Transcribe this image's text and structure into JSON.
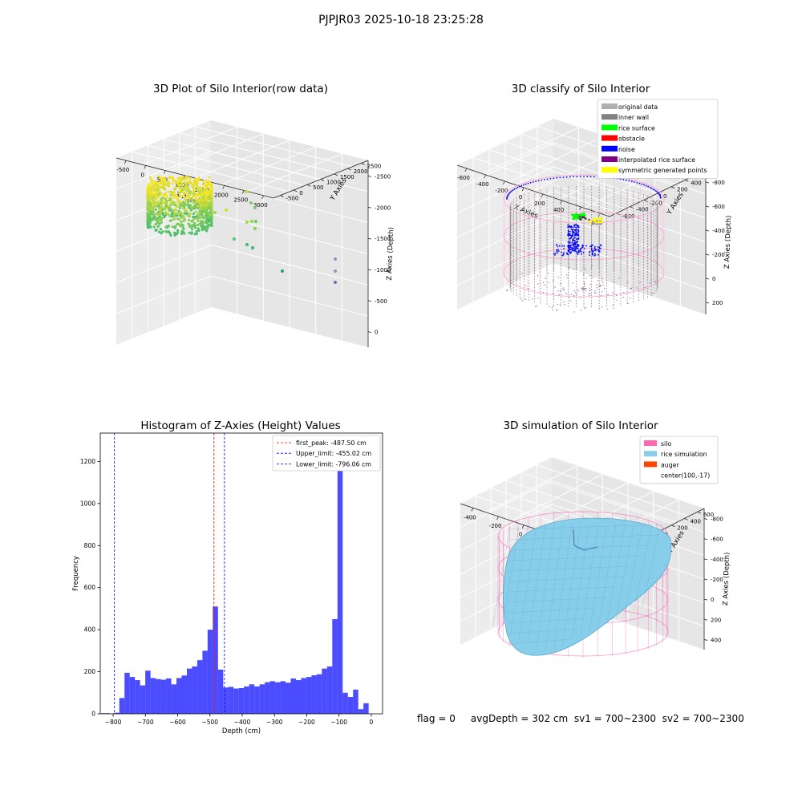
{
  "suptitle": "PJPJR03 2025-10-18 23:25:28",
  "status_text": "flag = 0     avgDepth = 302 cm  sv1 = 700~2300  sv2 = 700~2300",
  "chart_data": [
    {
      "type": "scatter",
      "title": "3D Plot of Silo Interior(row data)",
      "xlabel": "X Axies",
      "ylabel": "Y Axies",
      "zlabel": "Z Axies (Depth)",
      "x_ticks": [
        "-500",
        "0",
        "500",
        "1000",
        "1500",
        "2000",
        "2500",
        "3000"
      ],
      "y_ticks": [
        "-500",
        "0",
        "500",
        "1000",
        "1500",
        "2000",
        "2500"
      ],
      "z_ticks": [
        "0",
        "-500",
        "-1000",
        "-1500",
        "-2000",
        "-2500"
      ],
      "xlim": [
        -600,
        3100
      ],
      "ylim": [
        -700,
        2600
      ],
      "zlim": [
        -2900,
        200
      ],
      "colormap": "viridis",
      "grid": true
    },
    {
      "type": "scatter",
      "title": "3D classify of Silo Interior",
      "xlabel": "X Axies",
      "ylabel": "Y Axies",
      "zlabel": "Z Axies (Depth)",
      "x_ticks": [
        "-600",
        "-400",
        "-200",
        "0",
        "200",
        "400",
        "600",
        "800"
      ],
      "y_ticks": [
        "-600",
        "-400",
        "-200",
        "0",
        "200",
        "400",
        "600"
      ],
      "z_ticks": [
        "200",
        "0",
        "-200",
        "-400",
        "-600",
        "-800"
      ],
      "xlim": [
        -650,
        850
      ],
      "ylim": [
        -700,
        700
      ],
      "zlim": [
        -900,
        300
      ],
      "legend": [
        {
          "label": "original data",
          "color": "#b0b0b0"
        },
        {
          "label": "inner wall",
          "color": "#808080"
        },
        {
          "label": "rice surface",
          "color": "#00ff00"
        },
        {
          "label": "obstacle",
          "color": "#ff0000"
        },
        {
          "label": "noise",
          "color": "#0000ff"
        },
        {
          "label": "interpolated rice surface",
          "color": "#800080"
        },
        {
          "label": "symmetric generated points",
          "color": "#ffff00"
        }
      ],
      "legend_position": "top-right",
      "grid": true
    },
    {
      "type": "bar",
      "title": "Histogram of Z-Axies (Height) Values",
      "xlabel": "Depth (cm)",
      "ylabel": "Frequency",
      "xlim": [
        -840,
        35
      ],
      "ylim": [
        0,
        1335
      ],
      "x_ticks": [
        -800,
        -700,
        -600,
        -500,
        -400,
        -300,
        -200,
        -100,
        0
      ],
      "y_ticks": [
        0,
        200,
        400,
        600,
        800,
        1000,
        1200
      ],
      "bin_edges": [
        -797,
        -780.9,
        -764.8,
        -748.7,
        -732.6,
        -716.5,
        -700.4,
        -684.3,
        -668.2,
        -652.1,
        -636,
        -619.9,
        -603.8,
        -587.7,
        -571.6,
        -555.5,
        -539.4,
        -523.3,
        -507.2,
        -491.1,
        -475,
        -458.9,
        -442.8,
        -426.7,
        -410.6,
        -394.5,
        -378.4,
        -362.3,
        -346.2,
        -330.1,
        -314,
        -297.9,
        -281.8,
        -265.7,
        -249.6,
        -233.5,
        -217.4,
        -201.3,
        -185.2,
        -169.1,
        -153,
        -136.9,
        -120.8,
        -104.7,
        -88.6,
        -72.5,
        -56.4,
        -40.3,
        -24.2,
        -8.1,
        8
      ],
      "counts": [
        5,
        75,
        195,
        175,
        160,
        135,
        205,
        170,
        165,
        162,
        168,
        140,
        170,
        182,
        215,
        225,
        255,
        300,
        400,
        510,
        210,
        125,
        128,
        120,
        122,
        130,
        140,
        130,
        140,
        150,
        155,
        150,
        155,
        148,
        168,
        160,
        170,
        175,
        183,
        188,
        215,
        225,
        450,
        1270,
        100,
        80,
        115,
        22,
        50,
        0
      ],
      "bar_color": "#0000ff",
      "extra_bar": {
        "x0": -837,
        "x1": -811,
        "count": 3
      },
      "vlines": [
        {
          "label": "first_peak: -487.50 cm",
          "x": -487.5,
          "color": "#ff0000"
        },
        {
          "label": "Upper_limit: -455.02 cm",
          "x": -455.02,
          "color": "#0000ff"
        },
        {
          "label": "Lower_limit: -796.06 cm",
          "x": -796.06,
          "color": "#0000ff"
        }
      ],
      "legend_position": "top-right"
    },
    {
      "type": "surface",
      "title": "3D simulation of Silo Interior",
      "xlabel": "X Axies",
      "ylabel": "Y Axies",
      "zlabel": "Z Axies (Depth)",
      "x_ticks": [
        "-400",
        "-200",
        "0",
        "200",
        "400",
        "600"
      ],
      "y_ticks": [
        "-600",
        "-400",
        "-200",
        "0",
        "200",
        "400",
        "600"
      ],
      "z_ticks": [
        "400",
        "200",
        "0",
        "-200",
        "-400",
        "-600",
        "-800"
      ],
      "xlim": [
        -550,
        750
      ],
      "ylim": [
        -700,
        700
      ],
      "zlim": [
        -900,
        450
      ],
      "legend": [
        {
          "label": "silo",
          "color": "#ff69b4"
        },
        {
          "label": "rice simulation",
          "color": "#87ceeb"
        },
        {
          "label": "auger",
          "color": "#ff4500"
        },
        {
          "label": "center(100,-17)",
          "color": "none"
        }
      ],
      "legend_position": "top-right",
      "grid": true
    }
  ]
}
